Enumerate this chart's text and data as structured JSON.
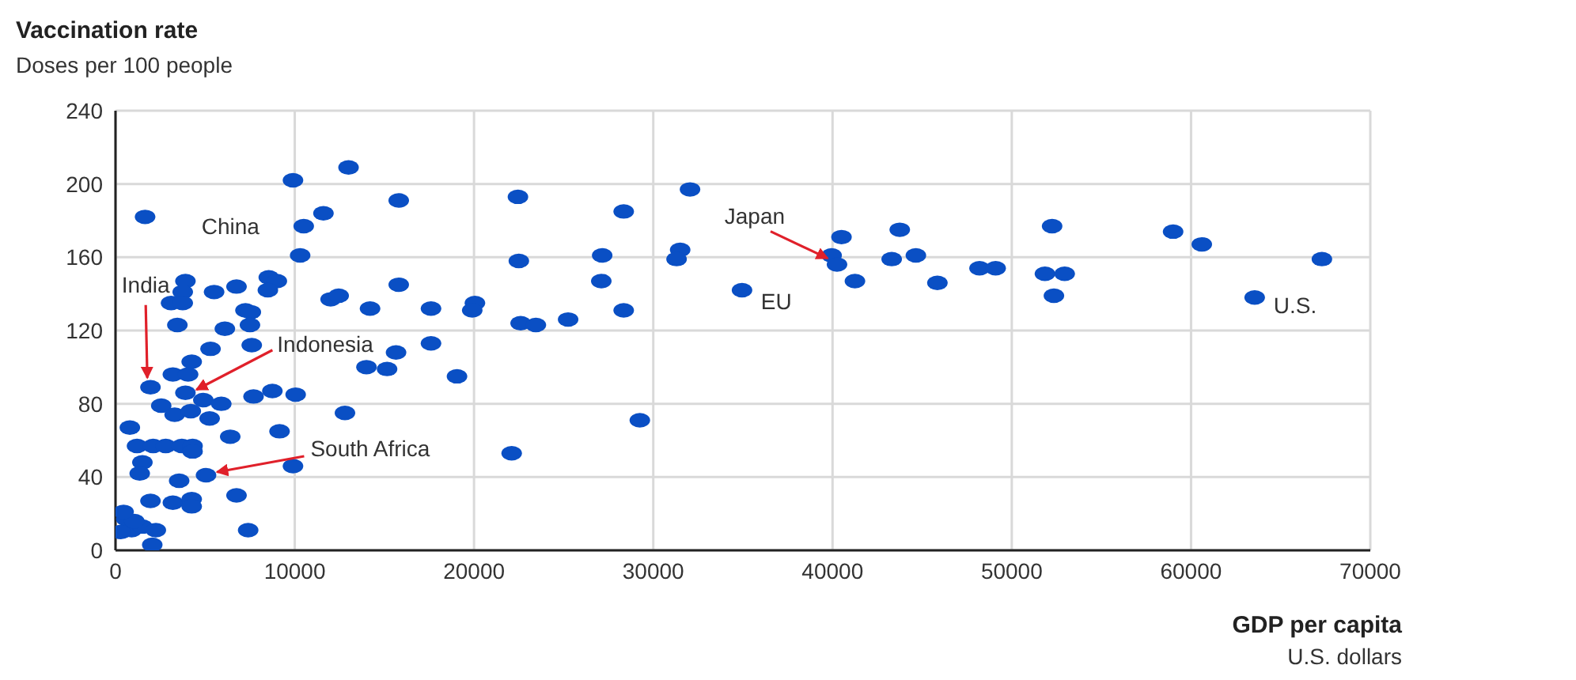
{
  "chart_data": {
    "type": "scatter",
    "title": "Vaccination rate",
    "subtitle": "Doses per 100 people",
    "xlabel": "GDP per capita",
    "annotations": [
      "U.S. dollars",
      {
        "text": "China",
        "x": 10500,
        "y": 177
      },
      {
        "text": "India",
        "x": 1950,
        "y": 89
      },
      {
        "text": "Indonesia",
        "x": 3900,
        "y": 86
      },
      {
        "text": "South Africa",
        "x": 5050,
        "y": 41
      },
      {
        "text": "Japan",
        "x": 40250,
        "y": 156
      },
      {
        "text": "EU",
        "x": 34950,
        "y": 142
      },
      {
        "text": "U.S.",
        "x": 63550,
        "y": 138
      }
    ],
    "xlim": [
      0,
      70000
    ],
    "xticks": [
      0,
      10000,
      20000,
      30000,
      40000,
      50000,
      60000,
      70000
    ],
    "ylim": [
      0,
      240
    ],
    "yticks": [
      0,
      40,
      80,
      120,
      160,
      200,
      240
    ],
    "grid": true,
    "marker": "circle",
    "series": [
      {
        "color": "#0a4fc4",
        "x": [
          13000,
          9900,
          15800,
          1650,
          11600,
          10500,
          10300,
          3900,
          3750,
          3100,
          3750,
          5500,
          6750,
          8550,
          9000,
          8500,
          15800,
          12000,
          12450,
          14200,
          17600,
          20050,
          19900,
          7250,
          7550,
          3450,
          6100,
          7500,
          5300,
          7600,
          17600,
          15650,
          14000,
          15150,
          19050,
          4250,
          3200,
          4050,
          1950,
          3900,
          4900,
          5900,
          2550,
          3300,
          4200,
          5250,
          7700,
          8750,
          10050,
          12800,
          800,
          9150,
          6400,
          1200,
          2100,
          2800,
          3700,
          4300,
          4300,
          1500,
          1350,
          3550,
          5050,
          9900,
          1950,
          3200,
          4250,
          4250,
          6750,
          7400,
          600,
          900,
          300,
          1500,
          2250,
          2050,
          1050,
          450,
          22450,
          32050,
          28350,
          22500,
          27150,
          31500,
          31300,
          27100,
          40500,
          39950,
          40250,
          41250,
          34950,
          22600,
          23450,
          25250,
          28350,
          29250,
          22100,
          43750,
          43300,
          44650,
          45850,
          48200,
          49100,
          52250,
          51850,
          52950,
          52350,
          59000,
          60600,
          67300,
          63550
        ],
        "values": [
          209,
          202,
          191,
          182,
          184,
          177,
          161,
          147,
          141,
          135,
          135,
          141,
          144,
          149,
          147,
          142,
          145,
          137,
          139,
          132,
          132,
          135,
          131,
          131,
          130,
          123,
          121,
          123,
          110,
          112,
          113,
          108,
          100,
          99,
          95,
          103,
          96,
          96,
          89,
          86,
          82,
          80,
          79,
          74,
          76,
          72,
          84,
          87,
          85,
          75,
          67,
          65,
          62,
          57,
          57,
          57,
          57,
          57,
          54,
          48,
          42,
          38,
          41,
          46,
          27,
          26,
          28,
          24,
          30,
          11,
          17,
          11,
          10,
          13,
          11,
          3,
          16,
          21,
          193,
          197,
          185,
          158,
          161,
          164,
          159,
          147,
          171,
          161,
          156,
          147,
          142,
          124,
          123,
          126,
          131,
          71,
          53,
          175,
          159,
          161,
          146,
          154,
          154,
          177,
          151,
          151,
          139,
          174,
          167,
          159,
          138
        ]
      }
    ]
  }
}
